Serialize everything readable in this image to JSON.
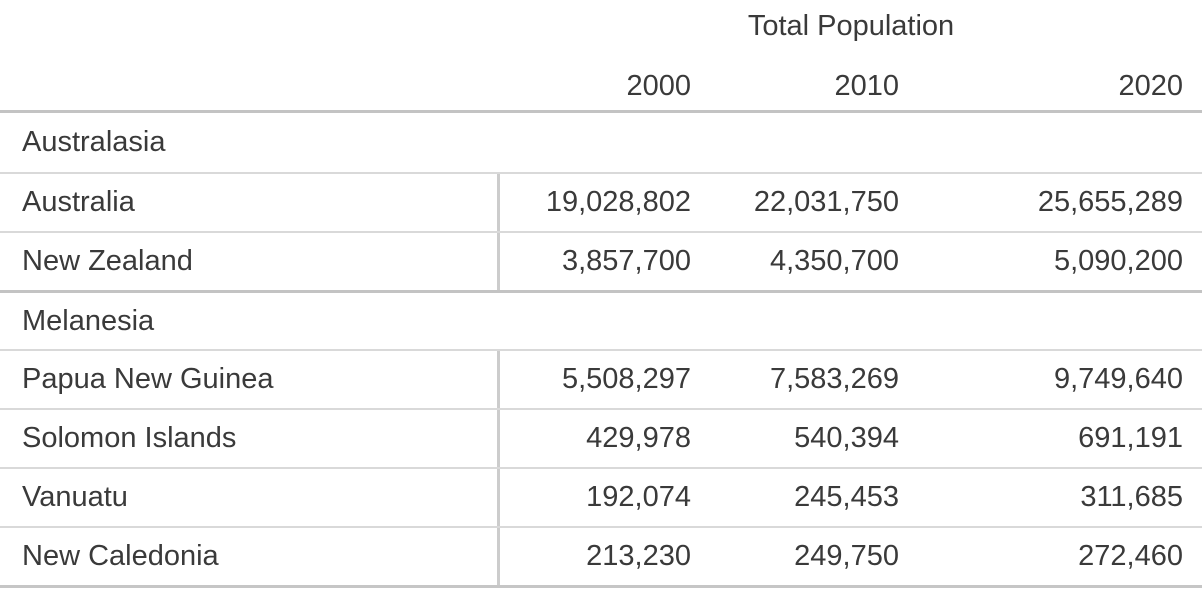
{
  "chart_data": {
    "type": "table",
    "title": "Total Population",
    "columns": [
      "2000",
      "2010",
      "2020"
    ],
    "groups": [
      {
        "label": "Australasia",
        "rows": [
          {
            "name": "Australia",
            "values": [
              "19,028,802",
              "22,031,750",
              "25,655,289"
            ]
          },
          {
            "name": "New Zealand",
            "values": [
              "3,857,700",
              "4,350,700",
              "5,090,200"
            ]
          }
        ]
      },
      {
        "label": "Melanesia",
        "rows": [
          {
            "name": "Papua New Guinea",
            "values": [
              "5,508,297",
              "7,583,269",
              "9,749,640"
            ]
          },
          {
            "name": "Solomon Islands",
            "values": [
              "429,978",
              "540,394",
              "691,191"
            ]
          },
          {
            "name": "Vanuatu",
            "values": [
              "192,074",
              "245,453",
              "311,685"
            ]
          },
          {
            "name": "New Caledonia",
            "values": [
              "213,230",
              "249,750",
              "272,460"
            ]
          }
        ]
      }
    ],
    "layout": {
      "text_color": "#3a3a3a",
      "strong_rule_color": "#c3c3c3",
      "light_rule_color": "#d9d9d9",
      "divider_color": "#cccccc"
    }
  }
}
